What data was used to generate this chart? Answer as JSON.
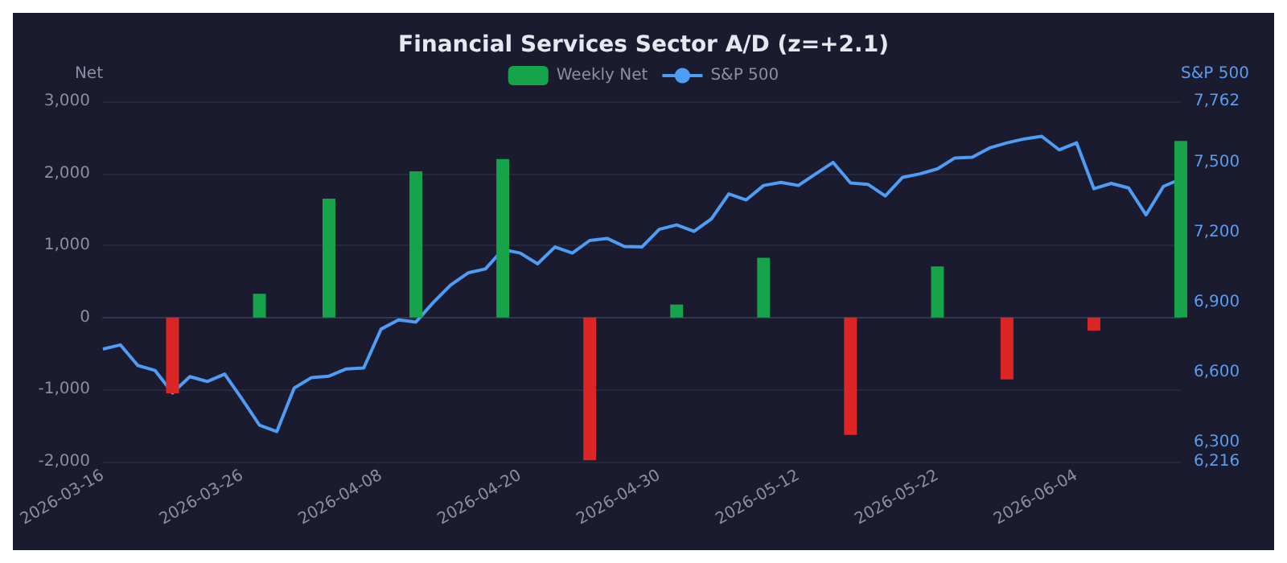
{
  "chart_data": {
    "type": "bar",
    "title": "Financial Services Sector A/D (z=+2.1)",
    "categories": [
      "2026-03-16",
      null,
      null,
      null,
      null,
      null,
      null,
      null,
      "2026-03-26",
      null,
      null,
      null,
      null,
      null,
      null,
      null,
      "2026-04-08",
      null,
      null,
      null,
      null,
      null,
      null,
      null,
      "2026-04-20",
      null,
      null,
      null,
      null,
      null,
      null,
      null,
      "2026-04-30",
      null,
      null,
      null,
      null,
      null,
      null,
      null,
      "2026-05-12",
      null,
      null,
      null,
      null,
      null,
      null,
      null,
      "2026-05-22",
      null,
      null,
      null,
      null,
      null,
      null,
      null,
      "2026-06-04",
      null,
      null,
      null,
      null,
      null,
      null
    ],
    "series": [
      {
        "name": "Weekly Net",
        "color": "#16a34a",
        "values": [
          null,
          null,
          null,
          null,
          -1050,
          null,
          null,
          null,
          null,
          330,
          null,
          null,
          null,
          1650,
          null,
          null,
          null,
          null,
          2030,
          null,
          null,
          null,
          null,
          2200,
          null,
          null,
          null,
          null,
          -1980,
          null,
          null,
          null,
          null,
          180,
          null,
          null,
          null,
          null,
          830,
          null,
          null,
          null,
          null,
          -1630,
          null,
          null,
          null,
          null,
          710,
          null,
          null,
          null,
          -860,
          null,
          null,
          null,
          null,
          -180,
          null,
          null,
          null,
          null,
          2450
        ],
        "colors": [
          null,
          null,
          null,
          null,
          "#dc2626",
          null,
          null,
          null,
          null,
          "#16a34a",
          null,
          null,
          null,
          "#16a34a",
          null,
          null,
          null,
          null,
          "#16a34a",
          null,
          null,
          null,
          null,
          "#16a34a",
          null,
          null,
          null,
          null,
          "#dc2626",
          null,
          null,
          null,
          null,
          "#16a34a",
          null,
          null,
          null,
          null,
          "#16a34a",
          null,
          null,
          null,
          null,
          "#dc2626",
          null,
          null,
          null,
          null,
          "#16a34a",
          null,
          null,
          null,
          "#dc2626",
          null,
          null,
          null,
          null,
          "#dc2626",
          null,
          null,
          null,
          null,
          "#16a34a"
        ]
      },
      {
        "name": "S&P 500",
        "type": "line",
        "axis": "y2",
        "color": "#4f9cf5",
        "values": [
          6699,
          6717,
          6629,
          6607,
          6511,
          6581,
          6560,
          6592,
          6485,
          6373,
          6345,
          6532,
          6577,
          6583,
          6614,
          6618,
          6785,
          6824,
          6815,
          6899,
          6974,
          7026,
          7043,
          7126,
          7111,
          7065,
          7137,
          7111,
          7165,
          7174,
          7139,
          7137,
          7213,
          7232,
          7204,
          7258,
          7365,
          7339,
          7401,
          7414,
          7401,
          7451,
          7500,
          7412,
          7406,
          7356,
          7436,
          7451,
          7472,
          7519,
          7522,
          7562,
          7584,
          7601,
          7612,
          7554,
          7584,
          7387,
          7410,
          7390,
          7275,
          7397,
          7429
        ]
      }
    ],
    "ylabel": "Net",
    "y2label": "S&P 500",
    "ylim": [
      -2000,
      3000
    ],
    "yticks": [
      {
        "value": -2000,
        "label": "-2,000"
      },
      {
        "value": -1000,
        "label": "-1,000"
      },
      0,
      {
        "value": 1000,
        "label": "1,000"
      },
      {
        "value": 2000,
        "label": "2,000"
      },
      {
        "value": 3000,
        "label": "3,000"
      }
    ],
    "y2lim": [
      6216,
      7762
    ],
    "y2ticks": [
      {
        "value": 6216,
        "label": "6,216"
      },
      {
        "value": 6300,
        "label": "6,300"
      },
      {
        "value": 6600,
        "label": "6,600"
      },
      {
        "value": 6900,
        "label": "6,900"
      },
      {
        "value": 7200,
        "label": "7,200"
      },
      {
        "value": 7500,
        "label": "7,500"
      },
      {
        "value": 7762,
        "label": "7,762"
      }
    ],
    "grid": "y",
    "legend": "top",
    "marker": "none",
    "line_style": "solid"
  }
}
